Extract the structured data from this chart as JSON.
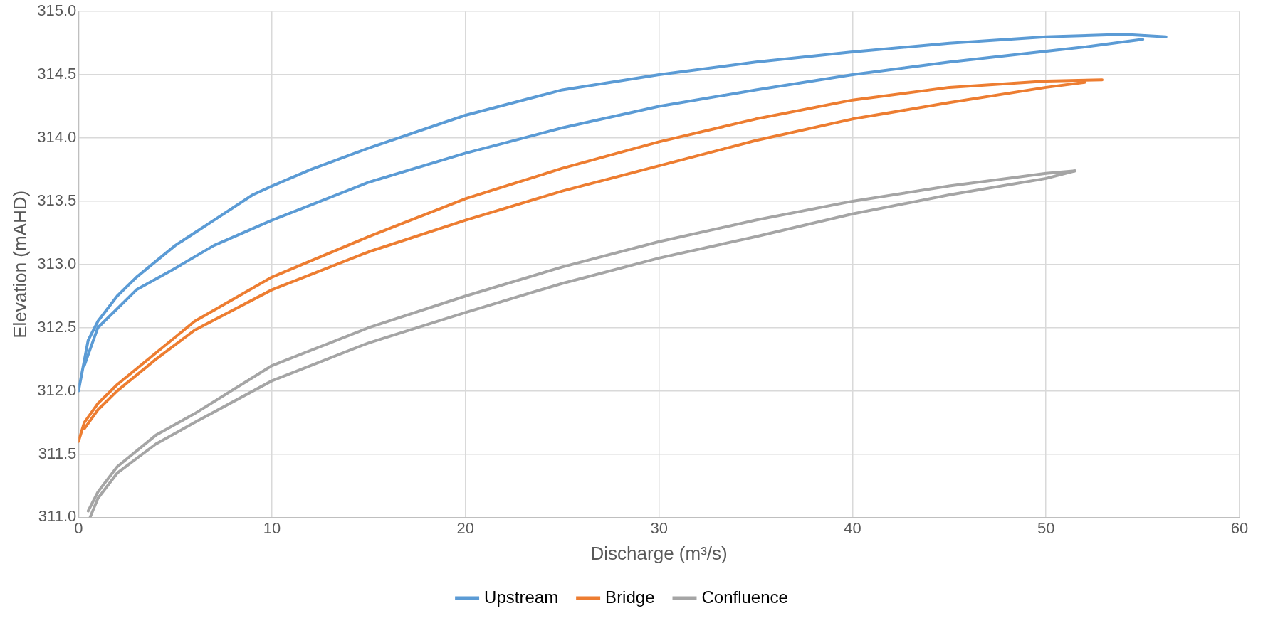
{
  "chart_data": {
    "type": "line",
    "xlabel": "Discharge (m³/s)",
    "ylabel": "Elevation (mAHD)",
    "xlim": [
      0,
      60
    ],
    "xticks": [
      0,
      10,
      20,
      30,
      40,
      50,
      60
    ],
    "ylim": [
      311,
      315
    ],
    "yticks": [
      {
        "value": 311,
        "label": "311.0"
      },
      {
        "value": 311.5,
        "label": "311.5"
      },
      {
        "value": 312,
        "label": "312.0"
      },
      {
        "value": 312.5,
        "label": "312.5"
      },
      {
        "value": 313,
        "label": "313.0"
      },
      {
        "value": 313.5,
        "label": "313.5"
      },
      {
        "value": 314,
        "label": "314.0"
      },
      {
        "value": 314.5,
        "label": "314.5"
      },
      {
        "value": 315,
        "label": "315.0"
      }
    ],
    "grid": true,
    "legend": "bottom",
    "marker": "none",
    "line_style": "solid",
    "series": [
      {
        "name": "Upstream",
        "color": "#5b9bd5",
        "x": [
          0,
          0.5,
          1,
          2,
          3,
          5,
          7,
          9,
          10,
          12,
          15,
          20,
          25,
          30,
          35,
          40,
          45,
          50,
          54,
          56.2
        ],
        "values": [
          312.0,
          312.4,
          312.55,
          312.75,
          312.9,
          313.15,
          313.35,
          313.55,
          313.62,
          313.75,
          313.92,
          314.18,
          314.38,
          314.5,
          314.6,
          314.68,
          314.75,
          314.8,
          314.82,
          314.8
        ]
      },
      {
        "color": "#5b9bd5",
        "x": [
          0.3,
          1,
          3,
          5,
          7,
          10,
          15,
          20,
          25,
          30,
          35,
          40,
          45,
          52,
          55
        ],
        "values": [
          312.2,
          312.5,
          312.8,
          312.97,
          313.15,
          313.35,
          313.65,
          313.88,
          314.08,
          314.25,
          314.38,
          314.5,
          314.6,
          314.72,
          314.78
        ]
      },
      {
        "name": "Bridge",
        "color": "#ed7d31",
        "x": [
          0,
          0.3,
          1,
          2,
          4,
          6,
          10,
          15,
          20,
          25,
          30,
          35,
          40,
          45,
          50,
          52.9
        ],
        "values": [
          311.6,
          311.75,
          311.9,
          312.05,
          312.3,
          312.55,
          312.9,
          313.22,
          313.52,
          313.76,
          313.97,
          314.15,
          314.3,
          314.4,
          314.45,
          314.46
        ]
      },
      {
        "color": "#ed7d31",
        "x": [
          0.3,
          1,
          2,
          4,
          6,
          10,
          15,
          20,
          25,
          30,
          35,
          40,
          45,
          50,
          52
        ],
        "values": [
          311.7,
          311.85,
          312.0,
          312.25,
          312.48,
          312.8,
          313.1,
          313.35,
          313.58,
          313.78,
          313.98,
          314.15,
          314.28,
          314.4,
          314.44
        ]
      },
      {
        "name": "Confluence",
        "color": "#a5a5a5",
        "x": [
          0.5,
          1,
          2,
          4,
          6,
          10,
          15,
          20,
          25,
          30,
          35,
          40,
          45,
          50,
          51.5
        ],
        "values": [
          311.05,
          311.2,
          311.4,
          311.65,
          311.82,
          312.2,
          312.5,
          312.75,
          312.98,
          313.18,
          313.35,
          313.5,
          313.62,
          313.72,
          313.74
        ]
      },
      {
        "color": "#a5a5a5",
        "x": [
          0.6,
          1,
          2,
          4,
          6,
          10,
          15,
          20,
          25,
          30,
          35,
          40,
          45,
          50,
          51.5
        ],
        "values": [
          311.0,
          311.15,
          311.35,
          311.58,
          311.75,
          312.08,
          312.38,
          312.62,
          312.85,
          313.05,
          313.22,
          313.4,
          313.55,
          313.68,
          313.74
        ]
      }
    ]
  }
}
